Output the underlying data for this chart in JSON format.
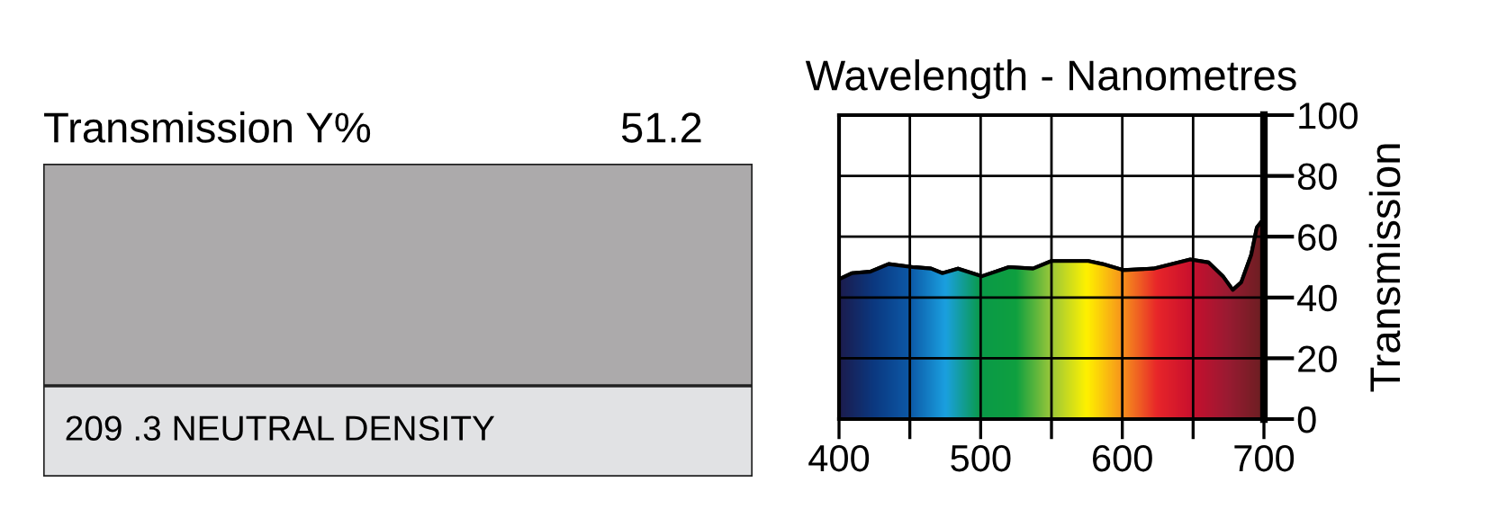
{
  "chart_data": [
    {
      "type": "other",
      "title": "Transmission Y%",
      "annotations": [
        "51.2",
        "209 .3 NEUTRAL DENSITY"
      ]
    },
    {
      "type": "area",
      "title": "Wavelength - Nanometres",
      "ylabel": "Transmission",
      "x": [
        400,
        409,
        422,
        435,
        452,
        465,
        473,
        484,
        501,
        520,
        537,
        550,
        576,
        586,
        601,
        622,
        648,
        661,
        671,
        678,
        684,
        691,
        695,
        700
      ],
      "series": [
        {
          "color": "#000000",
          "values": [
            46,
            48,
            48.5,
            51,
            50,
            49.5,
            48,
            49.5,
            47,
            50,
            49.5,
            52,
            52,
            51,
            49,
            49.5,
            52.5,
            51.5,
            47,
            42.5,
            45,
            54,
            63,
            66
          ]
        }
      ],
      "xlim": [
        400,
        700
      ],
      "ylim": [
        0,
        100
      ],
      "xticks": [
        400,
        {
          "value": 450,
          "label": null
        },
        500,
        {
          "value": 550,
          "label": null
        },
        600,
        {
          "value": 650,
          "label": null
        },
        700
      ],
      "yticks": [
        0,
        20,
        40,
        60,
        80,
        100
      ],
      "grid": true
    }
  ]
}
